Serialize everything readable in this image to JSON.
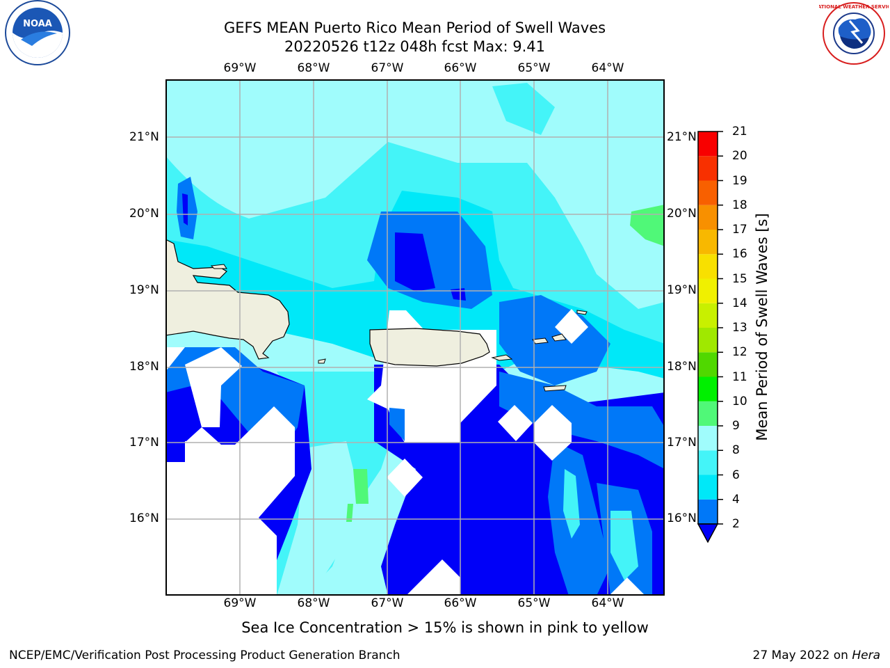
{
  "title_line1": "GEFS MEAN Puerto Rico Mean Period of Swell Waves",
  "title_line2": "20220526 t12z 048h fcst   Max: 9.41",
  "colorbar": {
    "label": "Mean Period of Swell Waves [s]",
    "ticks": [
      "2",
      "4",
      "6",
      "8",
      "9",
      "10",
      "11",
      "12",
      "13",
      "14",
      "15",
      "16",
      "17",
      "18",
      "19",
      "20",
      "21"
    ],
    "colors": [
      "#0000f8",
      "#0078f8",
      "#00e8f8",
      "#44f4f8",
      "#a0fcfc",
      "#50f878",
      "#00f000",
      "#50d800",
      "#a0e800",
      "#c8f000",
      "#f0f000",
      "#f8e000",
      "#f8b800",
      "#f89000",
      "#f86000",
      "#f83000",
      "#f80000"
    ]
  },
  "map": {
    "lon_labels": [
      "69°W",
      "68°W",
      "67°W",
      "66°W",
      "65°W",
      "64°W"
    ],
    "lat_labels": [
      "21°N",
      "20°N",
      "19°N",
      "18°N",
      "17°N",
      "16°N"
    ],
    "land_color": "#efefdf",
    "no_data_color": "#ffffff"
  },
  "logos": {
    "noaa": "NOAA",
    "nws": "NATIONAL WEATHER SERVICE"
  },
  "note": "Sea Ice Concentration > 15% is shown in pink to yellow",
  "footer_left": "NCEP/EMC/Verification Post Processing Product Generation Branch",
  "footer_date": "27 May 2022 on",
  "footer_host": "Hera"
}
